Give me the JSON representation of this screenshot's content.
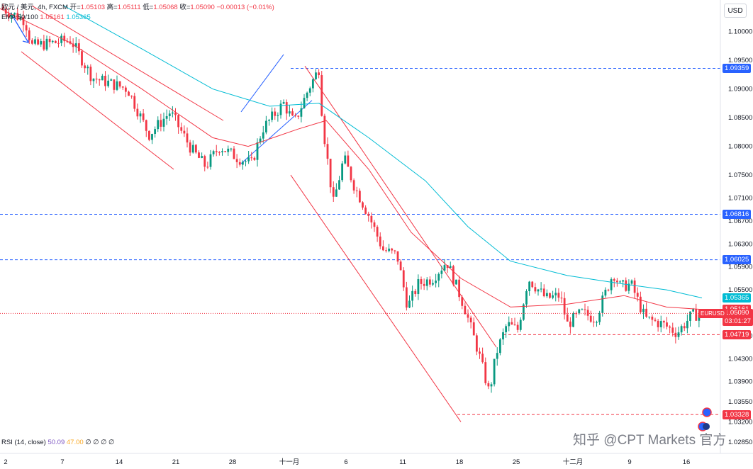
{
  "legend": {
    "symbol": "欧元 / 美元, 4h, FXCM",
    "open_label": "开=",
    "open": "1.05103",
    "high_label": "高=",
    "high": "1.05111",
    "low_label": "低=",
    "low": "1.05068",
    "close_label": "收=",
    "close": "1.05090",
    "change": "−0.00013 (−0.01%)",
    "ema_label": "EMA 50/100",
    "ema50": "1.05161",
    "ema100": "1.05365"
  },
  "currency_button": "USD",
  "rsi": {
    "label": "RSI (14, close)",
    "value1": "50.09",
    "value2": "47.00",
    "extras": "∅ ∅ ∅ ∅"
  },
  "watermark": "知乎 @CPT Markets 官方",
  "colors": {
    "up": "#089981",
    "down": "#f23645",
    "ema50": "#f23645",
    "ema100": "#00bcd4",
    "level": "#2962ff",
    "channel": "#f23645",
    "wedge": "#2962ff"
  },
  "chart_data": {
    "type": "candlestick",
    "timeframe": "4h",
    "x_ticks": [
      "2",
      "7",
      "14",
      "21",
      "28",
      "十一月",
      "6",
      "11",
      "18",
      "25",
      "十二月",
      "9",
      "16"
    ],
    "y_ticks": [
      "1.10000",
      "1.09500",
      "1.09000",
      "1.08500",
      "1.08000",
      "1.07500",
      "1.07100",
      "1.06700",
      "1.06300",
      "1.05900",
      "1.05500",
      "1.04700",
      "1.04300",
      "1.03900",
      "1.03550",
      "1.03200",
      "1.02850"
    ],
    "ylim": [
      1.0265,
      1.1055
    ],
    "price_path": [
      [
        0,
        1.1042
      ],
      [
        0.035,
        1.102
      ],
      [
        0.045,
        1.0975
      ],
      [
        0.1,
        1.0985
      ],
      [
        0.13,
        1.092
      ],
      [
        0.18,
        1.09
      ],
      [
        0.21,
        1.082
      ],
      [
        0.24,
        1.086
      ],
      [
        0.27,
        1.0795
      ],
      [
        0.29,
        1.0765
      ],
      [
        0.31,
        1.08
      ],
      [
        0.335,
        1.078
      ],
      [
        0.355,
        1.077
      ],
      [
        0.37,
        1.083
      ],
      [
        0.4,
        1.0875
      ],
      [
        0.415,
        1.084
      ],
      [
        0.435,
        1.09
      ],
      [
        0.45,
        1.0936
      ],
      [
        0.455,
        1.084
      ],
      [
        0.47,
        1.07
      ],
      [
        0.485,
        1.078
      ],
      [
        0.5,
        1.073
      ],
      [
        0.52,
        1.068
      ],
      [
        0.54,
        1.062
      ],
      [
        0.56,
        1.061
      ],
      [
        0.575,
        1.052
      ],
      [
        0.59,
        1.056
      ],
      [
        0.61,
        1.057
      ],
      [
        0.63,
        1.06
      ],
      [
        0.655,
        1.052
      ],
      [
        0.675,
        1.044
      ],
      [
        0.69,
        1.037
      ],
      [
        0.7,
        1.044
      ],
      [
        0.715,
        1.049
      ],
      [
        0.73,
        1.048
      ],
      [
        0.745,
        1.057
      ],
      [
        0.77,
        1.0535
      ],
      [
        0.79,
        1.054
      ],
      [
        0.8,
        1.049
      ],
      [
        0.82,
        1.051
      ],
      [
        0.84,
        1.05
      ],
      [
        0.865,
        1.058
      ],
      [
        0.875,
        1.0555
      ],
      [
        0.89,
        1.056
      ],
      [
        0.91,
        1.05
      ],
      [
        0.935,
        1.049
      ],
      [
        0.955,
        1.0475
      ],
      [
        0.975,
        1.0505
      ],
      [
        0.99,
        1.0509
      ]
    ],
    "ema50_path": [
      [
        0,
        1.104
      ],
      [
        0.1,
        1.098
      ],
      [
        0.2,
        1.09
      ],
      [
        0.3,
        1.0815
      ],
      [
        0.35,
        1.08
      ],
      [
        0.42,
        1.083
      ],
      [
        0.46,
        1.0845
      ],
      [
        0.52,
        1.076
      ],
      [
        0.58,
        1.065
      ],
      [
        0.65,
        1.057
      ],
      [
        0.72,
        1.052
      ],
      [
        0.8,
        1.0525
      ],
      [
        0.88,
        1.054
      ],
      [
        0.94,
        1.052
      ],
      [
        0.99,
        1.0516
      ]
    ],
    "ema100_path": [
      [
        0.09,
        1.1045
      ],
      [
        0.2,
        1.097
      ],
      [
        0.3,
        1.09
      ],
      [
        0.38,
        1.087
      ],
      [
        0.45,
        1.0875
      ],
      [
        0.52,
        1.0815
      ],
      [
        0.6,
        1.074
      ],
      [
        0.66,
        1.066
      ],
      [
        0.72,
        1.06
      ],
      [
        0.8,
        1.0575
      ],
      [
        0.88,
        1.056
      ],
      [
        0.94,
        1.055
      ],
      [
        0.99,
        1.0536
      ]
    ],
    "horizontal_levels": [
      {
        "price": "1.09359",
        "value": 1.09359,
        "color": "#2962ff",
        "x_start": 0.41
      },
      {
        "price": "1.06816",
        "value": 1.06816,
        "color": "#2962ff",
        "x_start": 0
      },
      {
        "price": "1.06025",
        "value": 1.06025,
        "color": "#2962ff",
        "x_start": 0
      },
      {
        "price": "1.04719",
        "value": 1.04719,
        "color": "#f23645",
        "x_start": 0.71
      },
      {
        "price": "1.03328",
        "value": 1.03328,
        "color": "#f23645",
        "x_start": 0.645
      }
    ],
    "current_price": {
      "price": "1.05090",
      "value": 1.0509,
      "countdown": "03:01:27",
      "symbol": "EURUSD"
    },
    "ema_tags": [
      {
        "price": "1.05365",
        "value": 1.05365,
        "color": "#00bcd4"
      },
      {
        "price": "1.05161",
        "value": 1.05161,
        "color": "#f23645"
      }
    ],
    "trendlines": [
      {
        "color": "#f23645",
        "points": [
          [
            0.045,
            1.1045
          ],
          [
            0.315,
            1.0845
          ]
        ]
      },
      {
        "color": "#f23645",
        "points": [
          [
            0.03,
            1.0965
          ],
          [
            0.245,
            1.076
          ]
        ]
      },
      {
        "color": "#2962ff",
        "points": [
          [
            0.34,
            1.086
          ],
          [
            0.4,
            1.096
          ]
        ]
      },
      {
        "color": "#2962ff",
        "points": [
          [
            0.34,
            1.077
          ],
          [
            0.44,
            1.088
          ]
        ]
      },
      {
        "color": "#f23645",
        "points": [
          [
            0.43,
            1.094
          ],
          [
            0.7,
            1.045
          ]
        ]
      },
      {
        "color": "#f23645",
        "points": [
          [
            0.41,
            1.075
          ],
          [
            0.65,
            1.032
          ]
        ]
      }
    ]
  }
}
